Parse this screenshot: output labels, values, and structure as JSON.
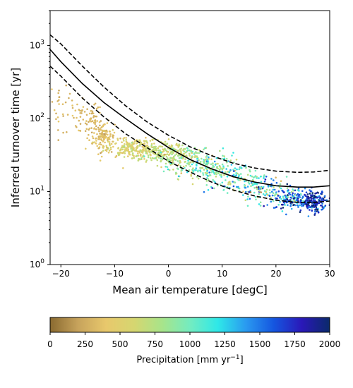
{
  "chart_data": {
    "type": "scatter",
    "xlabel": "Mean air temperature [degC]",
    "ylabel": "Inferred turnover time [yr]",
    "xlim": [
      -22,
      30
    ],
    "ylim": [
      1,
      3000
    ],
    "y_scale": "log",
    "grid": false,
    "x_ticks": [
      "−20",
      "−10",
      "0",
      "10",
      "20",
      "30"
    ],
    "y_ticks": [
      "10^0",
      "10^1",
      "10^2",
      "10^3"
    ],
    "colorbar": {
      "label": "Precipitation [mm yr",
      "label_exp": "−1",
      "label_end": "]",
      "range": [
        0,
        2000
      ],
      "ticks": [
        "0",
        "250",
        "500",
        "750",
        "1000",
        "1250",
        "1500",
        "1750",
        "2000"
      ],
      "colormap_stops": [
        "#8a6a30",
        "#c7a35c",
        "#e8c86c",
        "#d6d670",
        "#a8e48a",
        "#74ecc0",
        "#2ee8e8",
        "#2a9af0",
        "#1556e0",
        "#2a18b8",
        "#0a2a6a"
      ]
    },
    "series": [
      {
        "kind": "fit-line",
        "style": "solid",
        "x": [
          -22,
          -20,
          -16,
          -12,
          -8,
          -4,
          0,
          4,
          8,
          12,
          16,
          20,
          24,
          27,
          30
        ],
        "y": [
          880,
          600,
          300,
          165,
          100,
          62,
          40,
          27.5,
          20.5,
          16,
          13.5,
          12,
          11.5,
          11.5,
          12
        ]
      },
      {
        "kind": "fit-line",
        "style": "dashed",
        "x": [
          -22,
          -20,
          -16,
          -12,
          -8,
          -4,
          0,
          4,
          8,
          12,
          16,
          20,
          24,
          27,
          30
        ],
        "y": [
          1400,
          1050,
          520,
          270,
          150,
          90,
          59,
          41,
          31,
          24.5,
          21,
          19,
          18.3,
          18.5,
          19.5
        ]
      },
      {
        "kind": "fit-line",
        "style": "dashed",
        "x": [
          -22,
          -20,
          -16,
          -12,
          -8,
          -4,
          0,
          4,
          8,
          12,
          16,
          20,
          24,
          27,
          30
        ],
        "y": [
          520,
          380,
          190,
          105,
          62,
          40,
          26,
          18.5,
          13.5,
          10.5,
          8.7,
          7.6,
          7.1,
          7.1,
          7.4
        ]
      }
    ],
    "scatter_clusters": [
      {
        "x": -20,
        "xsd": 1.5,
        "y": 150,
        "ysd": 0.18,
        "p": 320,
        "psd": 60,
        "n": 35
      },
      {
        "x": -15,
        "xsd": 1.5,
        "y": 95,
        "ysd": 0.12,
        "p": 300,
        "psd": 50,
        "n": 70
      },
      {
        "x": -12,
        "xsd": 1.0,
        "y": 55,
        "ysd": 0.1,
        "p": 350,
        "psd": 60,
        "n": 120
      },
      {
        "x": -7,
        "xsd": 2.5,
        "y": 40,
        "ysd": 0.07,
        "p": 520,
        "psd": 90,
        "n": 200
      },
      {
        "x": -2,
        "xsd": 2.5,
        "y": 36,
        "ysd": 0.07,
        "p": 650,
        "psd": 100,
        "n": 170
      },
      {
        "x": 3,
        "xsd": 2.5,
        "y": 28,
        "ysd": 0.09,
        "p": 780,
        "psd": 200,
        "n": 170
      },
      {
        "x": 8,
        "xsd": 2.5,
        "y": 20,
        "ysd": 0.1,
        "p": 900,
        "psd": 250,
        "n": 150
      },
      {
        "x": 13,
        "xsd": 2.5,
        "y": 14,
        "ysd": 0.1,
        "p": 1000,
        "psd": 300,
        "n": 120
      },
      {
        "x": 18,
        "xsd": 2.0,
        "y": 10.5,
        "ysd": 0.09,
        "p": 1100,
        "psd": 400,
        "n": 90
      },
      {
        "x": 23,
        "xsd": 1.8,
        "y": 8,
        "ysd": 0.08,
        "p": 1500,
        "psd": 400,
        "n": 160
      },
      {
        "x": 27,
        "xsd": 1.2,
        "y": 7.2,
        "ysd": 0.07,
        "p": 1750,
        "psd": 250,
        "n": 180
      }
    ]
  }
}
